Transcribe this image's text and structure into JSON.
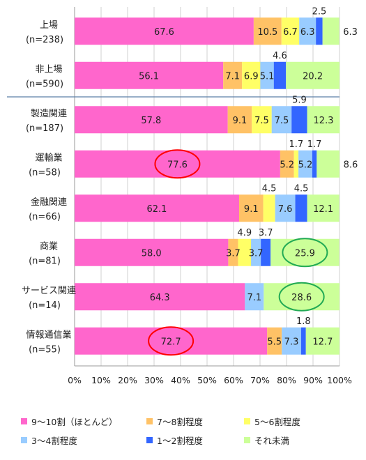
{
  "chart_data": {
    "type": "bar",
    "orientation": "horizontal",
    "stacked": true,
    "title": "",
    "xlabel": "",
    "ylabel": "",
    "xlim": [
      0,
      100
    ],
    "x_ticks": [
      "0%",
      "10%",
      "20%",
      "30%",
      "40%",
      "50%",
      "60%",
      "70%",
      "80%",
      "90%",
      "100%"
    ],
    "grid": "vertical",
    "legend_position": "bottom",
    "categories": [
      {
        "name": "上場",
        "n": "(n=238)"
      },
      {
        "name": "非上場",
        "n": "(n=590)"
      },
      {
        "name": "製造関連",
        "n": "(n=187)"
      },
      {
        "name": "運輸業",
        "n": "(n=58)"
      },
      {
        "name": "金融関連",
        "n": "(n=66)"
      },
      {
        "name": "商業",
        "n": "(n=81)"
      },
      {
        "name": "サービス関連",
        "n": "(n=14)"
      },
      {
        "name": "情報通信業",
        "n": "(n=55)"
      }
    ],
    "series": [
      {
        "name": "9～10割（ほとんど）",
        "color": "#ff66cc",
        "values": [
          67.6,
          56.1,
          57.8,
          77.6,
          62.1,
          58.0,
          64.3,
          72.7
        ]
      },
      {
        "name": "7～8割程度",
        "color": "#ffc266",
        "values": [
          10.5,
          7.1,
          9.1,
          5.2,
          9.1,
          3.7,
          0,
          5.5
        ]
      },
      {
        "name": "5～6割程度",
        "color": "#ffff66",
        "values": [
          6.7,
          6.9,
          7.5,
          1.7,
          4.5,
          4.9,
          0,
          0
        ]
      },
      {
        "name": "3～4割程度",
        "color": "#99ccff",
        "values": [
          6.3,
          5.1,
          7.5,
          5.2,
          7.6,
          3.7,
          7.1,
          7.3
        ]
      },
      {
        "name": "1～2割程度",
        "color": "#3366ff",
        "values": [
          2.5,
          4.6,
          5.9,
          1.7,
          4.5,
          3.7,
          0,
          1.8
        ]
      },
      {
        "name": "それ未満",
        "color": "#ccff99",
        "values": [
          6.3,
          20.2,
          12.3,
          8.6,
          12.1,
          25.9,
          28.6,
          12.7
        ]
      }
    ],
    "data_labels": [
      {
        "row": 0,
        "series": 0,
        "text": "67.6",
        "pos": "inside"
      },
      {
        "row": 0,
        "series": 1,
        "text": "10.5",
        "pos": "inside"
      },
      {
        "row": 0,
        "series": 2,
        "text": "6.7",
        "pos": "inside"
      },
      {
        "row": 0,
        "series": 3,
        "text": "6.3",
        "pos": "inside"
      },
      {
        "row": 0,
        "series": 4,
        "text": "2.5",
        "pos": "above"
      },
      {
        "row": 0,
        "series": 5,
        "text": "6.3",
        "pos": "right"
      },
      {
        "row": 1,
        "series": 0,
        "text": "56.1",
        "pos": "inside"
      },
      {
        "row": 1,
        "series": 1,
        "text": "7.1",
        "pos": "inside"
      },
      {
        "row": 1,
        "series": 2,
        "text": "6.9",
        "pos": "inside"
      },
      {
        "row": 1,
        "series": 3,
        "text": "5.1",
        "pos": "inside"
      },
      {
        "row": 1,
        "series": 4,
        "text": "4.6",
        "pos": "above"
      },
      {
        "row": 1,
        "series": 5,
        "text": "20.2",
        "pos": "inside"
      },
      {
        "row": 2,
        "series": 0,
        "text": "57.8",
        "pos": "inside"
      },
      {
        "row": 2,
        "series": 1,
        "text": "9.1",
        "pos": "inside"
      },
      {
        "row": 2,
        "series": 2,
        "text": "7.5",
        "pos": "inside"
      },
      {
        "row": 2,
        "series": 3,
        "text": "7.5",
        "pos": "inside"
      },
      {
        "row": 2,
        "series": 4,
        "text": "5.9",
        "pos": "above"
      },
      {
        "row": 2,
        "series": 5,
        "text": "12.3",
        "pos": "inside"
      },
      {
        "row": 3,
        "series": 0,
        "text": "77.6",
        "pos": "inside",
        "highlight": "#ff0000"
      },
      {
        "row": 3,
        "series": 1,
        "text": "5.2",
        "pos": "inside"
      },
      {
        "row": 3,
        "series": 2,
        "text": "1.7",
        "pos": "above"
      },
      {
        "row": 3,
        "series": 3,
        "text": "5.2",
        "pos": "inside"
      },
      {
        "row": 3,
        "series": 4,
        "text": "1.7",
        "pos": "above"
      },
      {
        "row": 3,
        "series": 5,
        "text": "8.6",
        "pos": "right"
      },
      {
        "row": 4,
        "series": 0,
        "text": "62.1",
        "pos": "inside"
      },
      {
        "row": 4,
        "series": 1,
        "text": "9.1",
        "pos": "inside"
      },
      {
        "row": 4,
        "series": 2,
        "text": "4.5",
        "pos": "above"
      },
      {
        "row": 4,
        "series": 3,
        "text": "7.6",
        "pos": "inside"
      },
      {
        "row": 4,
        "series": 4,
        "text": "4.5",
        "pos": "above"
      },
      {
        "row": 4,
        "series": 5,
        "text": "12.1",
        "pos": "inside"
      },
      {
        "row": 5,
        "series": 0,
        "text": "58.0",
        "pos": "inside"
      },
      {
        "row": 5,
        "series": 1,
        "text": "3.7",
        "pos": "inside"
      },
      {
        "row": 5,
        "series": 2,
        "text": "4.9",
        "pos": "above"
      },
      {
        "row": 5,
        "series": 3,
        "text": "3.7",
        "pos": "inside"
      },
      {
        "row": 5,
        "series": 4,
        "text": "3.7",
        "pos": "above"
      },
      {
        "row": 5,
        "series": 5,
        "text": "25.9",
        "pos": "inside",
        "highlight": "#22aa55"
      },
      {
        "row": 6,
        "series": 0,
        "text": "64.3",
        "pos": "inside"
      },
      {
        "row": 6,
        "series": 3,
        "text": "7.1",
        "pos": "inside"
      },
      {
        "row": 6,
        "series": 5,
        "text": "28.6",
        "pos": "inside",
        "highlight": "#22aa55"
      },
      {
        "row": 7,
        "series": 0,
        "text": "72.7",
        "pos": "inside",
        "highlight": "#ff0000"
      },
      {
        "row": 7,
        "series": 1,
        "text": "5.5",
        "pos": "inside"
      },
      {
        "row": 7,
        "series": 3,
        "text": "7.3",
        "pos": "inside"
      },
      {
        "row": 7,
        "series": 4,
        "text": "1.8",
        "pos": "above"
      },
      {
        "row": 7,
        "series": 5,
        "text": "12.7",
        "pos": "inside"
      }
    ],
    "separator_after_row": 1,
    "separator_color": "#5b7fa8"
  }
}
